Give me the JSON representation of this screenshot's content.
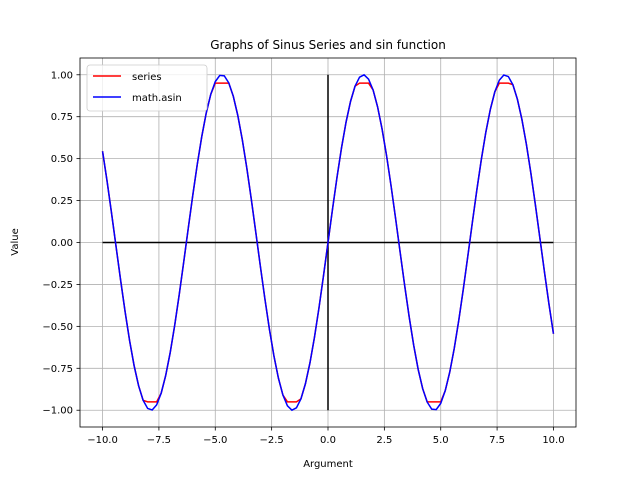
{
  "chart_data": {
    "type": "line",
    "title": "Graphs of Sinus Series and sin function",
    "xlabel": "Argument",
    "ylabel": "Value",
    "xlim": [
      -11,
      11
    ],
    "ylim": [
      -1.1,
      1.1
    ],
    "xticks": [
      -10,
      -7.5,
      -5,
      -2.5,
      0,
      2.5,
      5,
      7.5,
      10
    ],
    "xtick_labels": [
      "−10.0",
      "−7.5",
      "−5.0",
      "−2.5",
      "0.0",
      "2.5",
      "5.0",
      "7.5",
      "10.0"
    ],
    "yticks": [
      -1,
      -0.75,
      -0.5,
      -0.25,
      0,
      0.25,
      0.5,
      0.75,
      1
    ],
    "ytick_labels": [
      "−1.00",
      "−0.75",
      "−0.50",
      "−0.25",
      "0.00",
      "0.25",
      "0.50",
      "0.75",
      "1.00"
    ],
    "grid": true,
    "legend_position": "top-left",
    "x_domain": [
      -10,
      10
    ],
    "samples": 101,
    "series": [
      {
        "name": "series",
        "color": "#ff0000",
        "function": "sin",
        "peak": 0.95
      },
      {
        "name": "math.asin",
        "color": "#0000ff",
        "function": "sin",
        "peak": 1.0
      }
    ],
    "reference_lines": [
      {
        "orientation": "horizontal",
        "value": 0,
        "from": -10,
        "to": 10,
        "color": "#000000"
      },
      {
        "orientation": "vertical",
        "value": 0,
        "from": -1,
        "to": 1,
        "color": "#000000"
      }
    ]
  }
}
